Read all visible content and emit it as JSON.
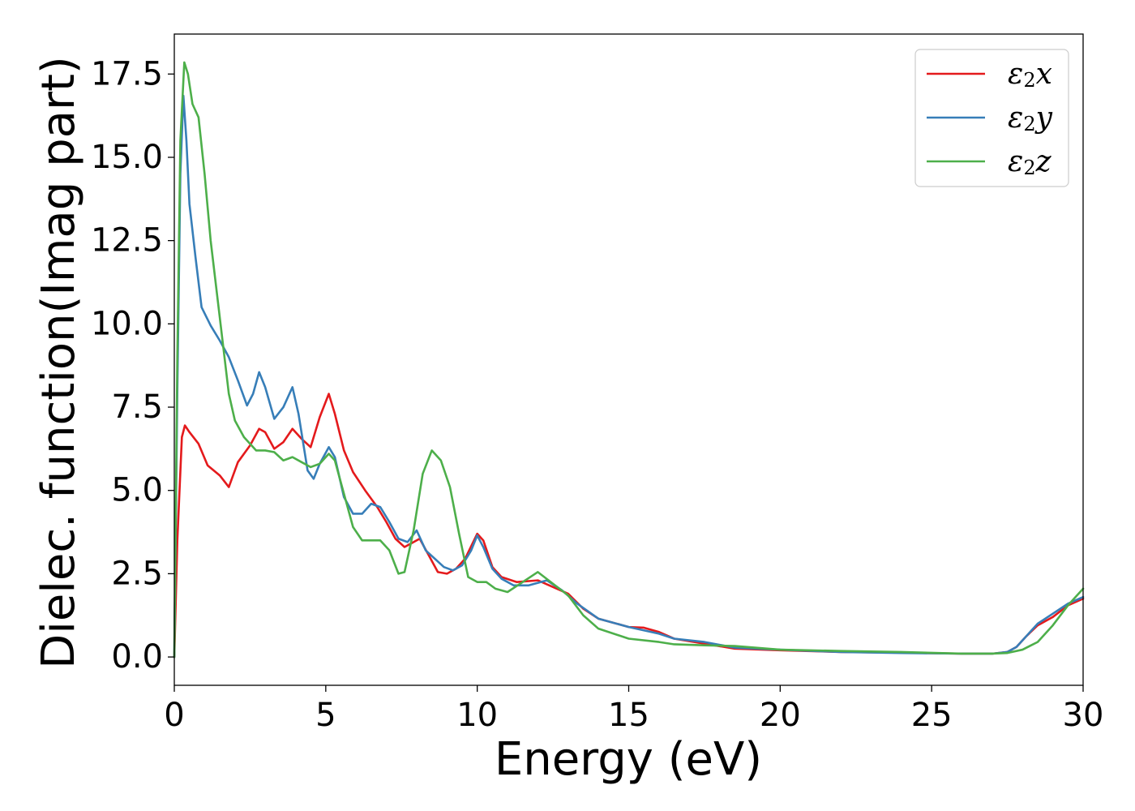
{
  "chart_data": {
    "type": "line",
    "xlabel": "Energy (eV)",
    "ylabel": "Dielec. function(Imag part)",
    "xlim": [
      0,
      30
    ],
    "ylim": [
      -0.85,
      18.7
    ],
    "xticks": [
      0,
      5,
      10,
      15,
      20,
      25,
      30
    ],
    "xtick_labels": [
      "0",
      "5",
      "10",
      "15",
      "20",
      "25",
      "30"
    ],
    "yticks": [
      0,
      2.5,
      5,
      7.5,
      10,
      12.5,
      15,
      17.5
    ],
    "ytick_labels": [
      "0.0",
      "2.5",
      "5.0",
      "7.5",
      "10.0",
      "12.5",
      "15.0",
      "17.5"
    ],
    "grid": false,
    "legend_position": "top-right",
    "series": [
      {
        "name": "ε₂x",
        "label_base": "ε",
        "label_sub": "2",
        "label_suffix": "x",
        "color": "#e41a1c",
        "points": [
          [
            0,
            0
          ],
          [
            0.1,
            3.5
          ],
          [
            0.25,
            6.6
          ],
          [
            0.35,
            6.95
          ],
          [
            0.5,
            6.75
          ],
          [
            0.8,
            6.4
          ],
          [
            1.1,
            5.75
          ],
          [
            1.5,
            5.45
          ],
          [
            1.8,
            5.1
          ],
          [
            2.1,
            5.85
          ],
          [
            2.5,
            6.35
          ],
          [
            2.8,
            6.85
          ],
          [
            3.0,
            6.75
          ],
          [
            3.3,
            6.25
          ],
          [
            3.6,
            6.45
          ],
          [
            3.9,
            6.85
          ],
          [
            4.2,
            6.55
          ],
          [
            4.5,
            6.3
          ],
          [
            4.8,
            7.2
          ],
          [
            5.1,
            7.9
          ],
          [
            5.3,
            7.3
          ],
          [
            5.6,
            6.2
          ],
          [
            5.9,
            5.55
          ],
          [
            6.3,
            5.0
          ],
          [
            6.7,
            4.5
          ],
          [
            7.0,
            4.05
          ],
          [
            7.3,
            3.55
          ],
          [
            7.6,
            3.3
          ],
          [
            7.9,
            3.45
          ],
          [
            8.1,
            3.55
          ],
          [
            8.4,
            3.05
          ],
          [
            8.7,
            2.55
          ],
          [
            9.0,
            2.5
          ],
          [
            9.3,
            2.65
          ],
          [
            9.6,
            2.95
          ],
          [
            10.0,
            3.7
          ],
          [
            10.2,
            3.5
          ],
          [
            10.5,
            2.7
          ],
          [
            10.8,
            2.4
          ],
          [
            11.3,
            2.25
          ],
          [
            12.0,
            2.3
          ],
          [
            12.5,
            2.1
          ],
          [
            13.0,
            1.9
          ],
          [
            13.5,
            1.45
          ],
          [
            14.0,
            1.15
          ],
          [
            15.0,
            0.9
          ],
          [
            15.5,
            0.88
          ],
          [
            16.0,
            0.75
          ],
          [
            16.5,
            0.55
          ],
          [
            17.5,
            0.4
          ],
          [
            18.5,
            0.25
          ],
          [
            20.0,
            0.2
          ],
          [
            22.0,
            0.15
          ],
          [
            24.0,
            0.13
          ],
          [
            26.0,
            0.1
          ],
          [
            27.0,
            0.1
          ],
          [
            27.5,
            0.15
          ],
          [
            27.8,
            0.3
          ],
          [
            28.1,
            0.6
          ],
          [
            28.5,
            0.95
          ],
          [
            29.0,
            1.2
          ],
          [
            29.5,
            1.55
          ],
          [
            30.0,
            1.75
          ]
        ]
      },
      {
        "name": "ε₂y",
        "label_base": "ε",
        "label_sub": "2",
        "label_suffix": "y",
        "color": "#377eb8",
        "points": [
          [
            0,
            0
          ],
          [
            0.1,
            8.0
          ],
          [
            0.2,
            14.5
          ],
          [
            0.3,
            16.85
          ],
          [
            0.4,
            15.5
          ],
          [
            0.5,
            13.6
          ],
          [
            0.7,
            12.0
          ],
          [
            0.9,
            10.5
          ],
          [
            1.2,
            9.95
          ],
          [
            1.5,
            9.5
          ],
          [
            1.8,
            9.0
          ],
          [
            2.1,
            8.3
          ],
          [
            2.4,
            7.55
          ],
          [
            2.6,
            7.9
          ],
          [
            2.8,
            8.55
          ],
          [
            3.0,
            8.1
          ],
          [
            3.3,
            7.15
          ],
          [
            3.6,
            7.5
          ],
          [
            3.9,
            8.1
          ],
          [
            4.1,
            7.3
          ],
          [
            4.4,
            5.6
          ],
          [
            4.6,
            5.35
          ],
          [
            4.8,
            5.8
          ],
          [
            5.1,
            6.3
          ],
          [
            5.3,
            6.0
          ],
          [
            5.6,
            4.8
          ],
          [
            5.9,
            4.3
          ],
          [
            6.2,
            4.3
          ],
          [
            6.5,
            4.6
          ],
          [
            6.8,
            4.5
          ],
          [
            7.1,
            4.05
          ],
          [
            7.4,
            3.55
          ],
          [
            7.7,
            3.45
          ],
          [
            8.0,
            3.8
          ],
          [
            8.3,
            3.2
          ],
          [
            8.6,
            2.95
          ],
          [
            8.9,
            2.7
          ],
          [
            9.2,
            2.6
          ],
          [
            9.5,
            2.75
          ],
          [
            9.8,
            3.2
          ],
          [
            10.0,
            3.65
          ],
          [
            10.2,
            3.3
          ],
          [
            10.5,
            2.65
          ],
          [
            10.8,
            2.35
          ],
          [
            11.2,
            2.15
          ],
          [
            11.7,
            2.15
          ],
          [
            12.3,
            2.3
          ],
          [
            12.8,
            2.0
          ],
          [
            13.3,
            1.6
          ],
          [
            14.0,
            1.15
          ],
          [
            15.0,
            0.9
          ],
          [
            16.0,
            0.7
          ],
          [
            16.5,
            0.55
          ],
          [
            17.5,
            0.45
          ],
          [
            18.5,
            0.28
          ],
          [
            20.0,
            0.22
          ],
          [
            22.0,
            0.15
          ],
          [
            24.0,
            0.12
          ],
          [
            26.0,
            0.1
          ],
          [
            27.0,
            0.1
          ],
          [
            27.5,
            0.15
          ],
          [
            27.8,
            0.3
          ],
          [
            28.1,
            0.6
          ],
          [
            28.5,
            1.0
          ],
          [
            29.0,
            1.3
          ],
          [
            29.5,
            1.6
          ],
          [
            30.0,
            1.8
          ]
        ]
      },
      {
        "name": "ε₂z",
        "label_base": "ε",
        "label_sub": "2",
        "label_suffix": "z",
        "color": "#4daf4a",
        "points": [
          [
            0,
            0
          ],
          [
            0.1,
            9.0
          ],
          [
            0.2,
            15.5
          ],
          [
            0.33,
            17.85
          ],
          [
            0.45,
            17.5
          ],
          [
            0.6,
            16.6
          ],
          [
            0.8,
            16.2
          ],
          [
            1.0,
            14.5
          ],
          [
            1.2,
            12.5
          ],
          [
            1.5,
            10.2
          ],
          [
            1.8,
            7.9
          ],
          [
            2.0,
            7.1
          ],
          [
            2.3,
            6.6
          ],
          [
            2.7,
            6.2
          ],
          [
            3.0,
            6.2
          ],
          [
            3.3,
            6.15
          ],
          [
            3.6,
            5.9
          ],
          [
            3.9,
            6.0
          ],
          [
            4.2,
            5.85
          ],
          [
            4.5,
            5.7
          ],
          [
            4.8,
            5.8
          ],
          [
            5.1,
            6.1
          ],
          [
            5.3,
            5.9
          ],
          [
            5.6,
            4.9
          ],
          [
            5.9,
            3.9
          ],
          [
            6.2,
            3.5
          ],
          [
            6.5,
            3.5
          ],
          [
            6.8,
            3.5
          ],
          [
            7.1,
            3.2
          ],
          [
            7.4,
            2.5
          ],
          [
            7.6,
            2.55
          ],
          [
            7.9,
            3.8
          ],
          [
            8.2,
            5.5
          ],
          [
            8.5,
            6.2
          ],
          [
            8.8,
            5.9
          ],
          [
            9.1,
            5.1
          ],
          [
            9.4,
            3.7
          ],
          [
            9.7,
            2.4
          ],
          [
            10.0,
            2.25
          ],
          [
            10.3,
            2.25
          ],
          [
            10.6,
            2.05
          ],
          [
            11.0,
            1.95
          ],
          [
            11.5,
            2.25
          ],
          [
            12.0,
            2.55
          ],
          [
            12.5,
            2.2
          ],
          [
            13.0,
            1.85
          ],
          [
            13.5,
            1.25
          ],
          [
            14.0,
            0.85
          ],
          [
            15.0,
            0.55
          ],
          [
            16.0,
            0.45
          ],
          [
            16.5,
            0.38
          ],
          [
            17.5,
            0.35
          ],
          [
            18.5,
            0.33
          ],
          [
            20.0,
            0.22
          ],
          [
            22.0,
            0.18
          ],
          [
            24.0,
            0.15
          ],
          [
            26.0,
            0.1
          ],
          [
            27.0,
            0.1
          ],
          [
            27.5,
            0.12
          ],
          [
            28.0,
            0.22
          ],
          [
            28.5,
            0.45
          ],
          [
            29.0,
            0.95
          ],
          [
            29.5,
            1.55
          ],
          [
            30.0,
            2.05
          ]
        ]
      }
    ]
  }
}
